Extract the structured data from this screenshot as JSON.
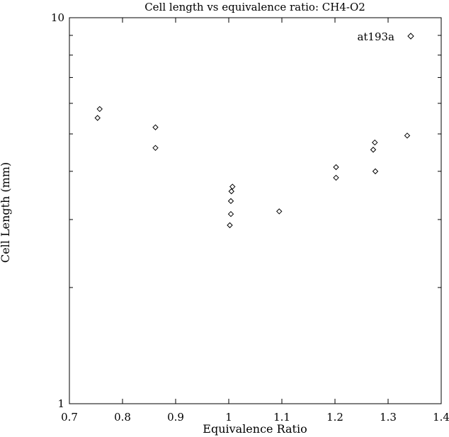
{
  "chart_data": {
    "type": "scatter",
    "title": "Cell length vs equivalence ratio: CH4-O2",
    "xlabel": "Equivalence Ratio",
    "ylabel": "Cell Length (mm)",
    "xlim": [
      0.7,
      1.4
    ],
    "ylim": [
      1,
      10
    ],
    "yscale": "log",
    "grid": false,
    "legend_position": "top-right",
    "x_ticks": [
      "0.7",
      "0.8",
      "0.9",
      "1",
      "1.1",
      "1.2",
      "1.3",
      "1.4"
    ],
    "y_ticks": [
      "1",
      "10"
    ],
    "marker": "diamond",
    "series": [
      {
        "name": "at193a",
        "points": [
          {
            "x": 0.753,
            "y": 5.5
          },
          {
            "x": 0.757,
            "y": 5.8
          },
          {
            "x": 0.862,
            "y": 5.2
          },
          {
            "x": 0.862,
            "y": 4.6
          },
          {
            "x": 1.002,
            "y": 2.9
          },
          {
            "x": 1.004,
            "y": 3.1
          },
          {
            "x": 1.004,
            "y": 3.35
          },
          {
            "x": 1.005,
            "y": 3.55
          },
          {
            "x": 1.007,
            "y": 3.65
          },
          {
            "x": 1.095,
            "y": 3.15
          },
          {
            "x": 1.202,
            "y": 3.85
          },
          {
            "x": 1.202,
            "y": 4.1
          },
          {
            "x": 1.272,
            "y": 4.55
          },
          {
            "x": 1.275,
            "y": 4.75
          },
          {
            "x": 1.276,
            "y": 4.0
          },
          {
            "x": 1.336,
            "y": 4.95
          }
        ]
      }
    ]
  }
}
